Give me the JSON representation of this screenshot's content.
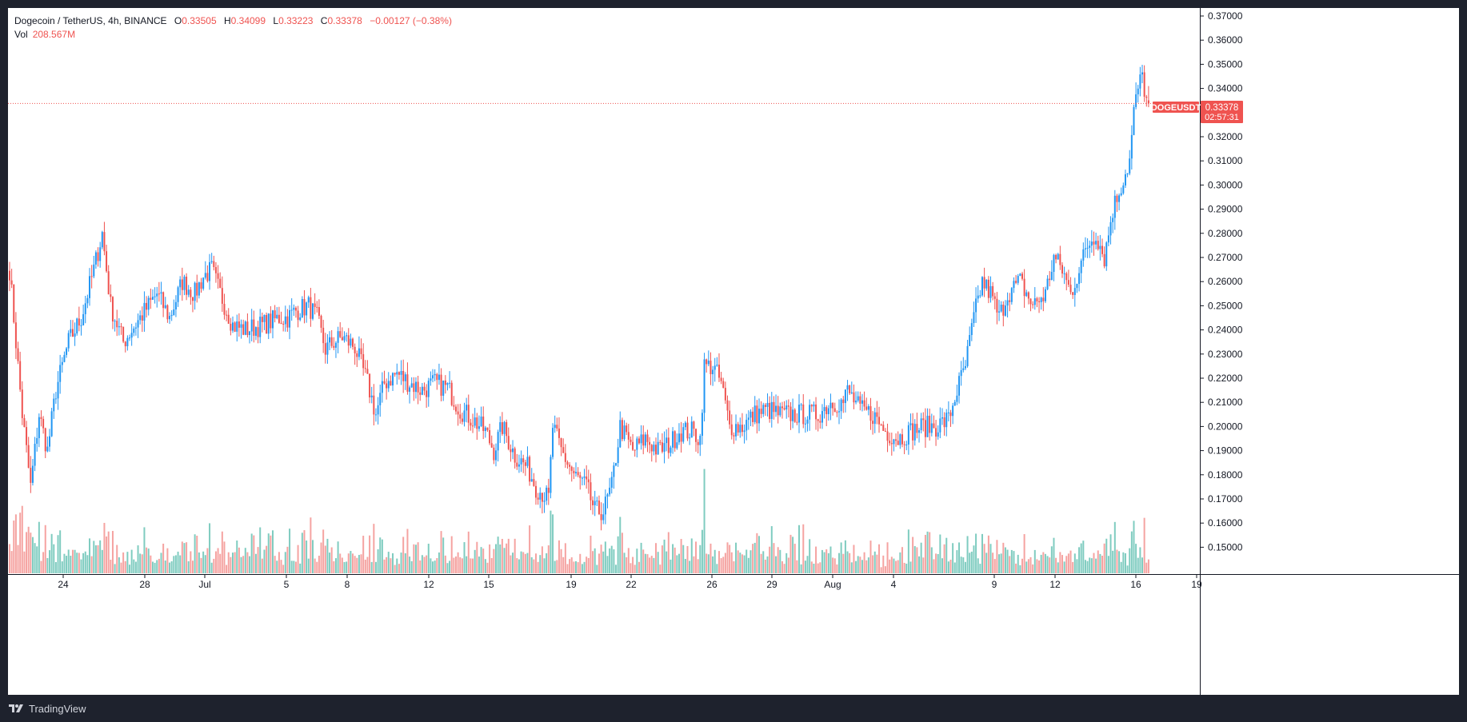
{
  "legend": {
    "title": "Dogecoin / TetherUS, 4h, BINANCE",
    "open_label": "O",
    "open": "0.33505",
    "high_label": "H",
    "high": "0.34099",
    "low_label": "L",
    "low": "0.33223",
    "close_label": "C",
    "close": "0.33378",
    "change": "−0.00127 (−0.38%)",
    "vol_label": "Vol",
    "vol": "208.567M"
  },
  "price_tag": {
    "symbol": "DOGEUSDT",
    "price": "0.33378",
    "countdown": "02:57:31"
  },
  "brand": {
    "name": "TradingView",
    "icon": "tradingview-logo-icon"
  },
  "colors": {
    "up": "#2196f3",
    "down": "#ef5350",
    "vol_up": "#7fccc0",
    "vol_down": "#f5a3a1",
    "price_line": "#ef5350"
  },
  "chart_data": {
    "type": "candlestick",
    "symbol": "DOGEUSDT",
    "interval": "4h",
    "y_axis": {
      "ticks": [
        "0.37000",
        "0.36000",
        "0.35000",
        "0.34000",
        "0.33000",
        "0.32000",
        "0.31000",
        "0.30000",
        "0.29000",
        "0.28000",
        "0.27000",
        "0.26000",
        "0.25000",
        "0.24000",
        "0.23000",
        "0.22000",
        "0.21000",
        "0.20000",
        "0.19000",
        "0.18000",
        "0.17000",
        "0.16000",
        "0.15000"
      ],
      "range": [
        0.1419,
        0.3735
      ]
    },
    "x_axis": {
      "ticks": [
        "24",
        "28",
        "Jul",
        "5",
        "8",
        "12",
        "15",
        "19",
        "22",
        "26",
        "29",
        "Aug",
        "4",
        "9",
        "12",
        "16",
        "19"
      ]
    },
    "anchors": [
      [
        0,
        0.265
      ],
      [
        2,
        0.245
      ],
      [
        6,
        0.205
      ],
      [
        10,
        0.175
      ],
      [
        14,
        0.205
      ],
      [
        18,
        0.19
      ],
      [
        22,
        0.215
      ],
      [
        28,
        0.235
      ],
      [
        34,
        0.245
      ],
      [
        40,
        0.265
      ],
      [
        44,
        0.28
      ],
      [
        48,
        0.25
      ],
      [
        54,
        0.235
      ],
      [
        62,
        0.245
      ],
      [
        70,
        0.255
      ],
      [
        76,
        0.245
      ],
      [
        82,
        0.26
      ],
      [
        88,
        0.255
      ],
      [
        92,
        0.262
      ],
      [
        96,
        0.265
      ],
      [
        100,
        0.255
      ],
      [
        106,
        0.242
      ],
      [
        112,
        0.24
      ],
      [
        120,
        0.242
      ],
      [
        128,
        0.245
      ],
      [
        132,
        0.245
      ],
      [
        136,
        0.248
      ],
      [
        142,
        0.25
      ],
      [
        146,
        0.245
      ],
      [
        150,
        0.232
      ],
      [
        154,
        0.235
      ],
      [
        158,
        0.237
      ],
      [
        164,
        0.233
      ],
      [
        170,
        0.218
      ],
      [
        174,
        0.205
      ],
      [
        178,
        0.218
      ],
      [
        184,
        0.222
      ],
      [
        190,
        0.218
      ],
      [
        196,
        0.215
      ],
      [
        202,
        0.218
      ],
      [
        208,
        0.216
      ],
      [
        214,
        0.207
      ],
      [
        220,
        0.203
      ],
      [
        226,
        0.198
      ],
      [
        230,
        0.19
      ],
      [
        234,
        0.2
      ],
      [
        240,
        0.188
      ],
      [
        246,
        0.183
      ],
      [
        250,
        0.175
      ],
      [
        256,
        0.17
      ],
      [
        258,
        0.2
      ],
      [
        262,
        0.19
      ],
      [
        268,
        0.18
      ],
      [
        274,
        0.175
      ],
      [
        278,
        0.165
      ],
      [
        282,
        0.165
      ],
      [
        286,
        0.175
      ],
      [
        290,
        0.2
      ],
      [
        296,
        0.19
      ],
      [
        302,
        0.195
      ],
      [
        308,
        0.19
      ],
      [
        314,
        0.193
      ],
      [
        318,
        0.198
      ],
      [
        324,
        0.198
      ],
      [
        328,
        0.195
      ],
      [
        330,
        0.225
      ],
      [
        334,
        0.225
      ],
      [
        338,
        0.218
      ],
      [
        342,
        0.2
      ],
      [
        348,
        0.2
      ],
      [
        354,
        0.205
      ],
      [
        360,
        0.207
      ],
      [
        366,
        0.205
      ],
      [
        372,
        0.205
      ],
      [
        378,
        0.205
      ],
      [
        384,
        0.205
      ],
      [
        390,
        0.21
      ],
      [
        396,
        0.21
      ],
      [
        398,
        0.215
      ],
      [
        404,
        0.207
      ],
      [
        410,
        0.205
      ],
      [
        416,
        0.198
      ],
      [
        422,
        0.195
      ],
      [
        428,
        0.198
      ],
      [
        434,
        0.2
      ],
      [
        440,
        0.2
      ],
      [
        446,
        0.203
      ],
      [
        450,
        0.215
      ],
      [
        454,
        0.225
      ],
      [
        458,
        0.245
      ],
      [
        462,
        0.26
      ],
      [
        466,
        0.255
      ],
      [
        470,
        0.245
      ],
      [
        474,
        0.255
      ],
      [
        480,
        0.26
      ],
      [
        486,
        0.25
      ],
      [
        492,
        0.255
      ],
      [
        496,
        0.27
      ],
      [
        500,
        0.265
      ],
      [
        504,
        0.255
      ],
      [
        508,
        0.265
      ],
      [
        512,
        0.275
      ],
      [
        516,
        0.28
      ],
      [
        520,
        0.27
      ],
      [
        524,
        0.29
      ],
      [
        528,
        0.3
      ],
      [
        532,
        0.31
      ],
      [
        534,
        0.33
      ],
      [
        536,
        0.34
      ],
      [
        538,
        0.345
      ],
      [
        540,
        0.335
      ],
      [
        541,
        0.3338
      ]
    ],
    "last": {
      "open": 0.33505,
      "high": 0.34099,
      "low": 0.33223,
      "close": 0.33378,
      "volume": "208.567M"
    },
    "grid": false,
    "volume_pane": true
  }
}
